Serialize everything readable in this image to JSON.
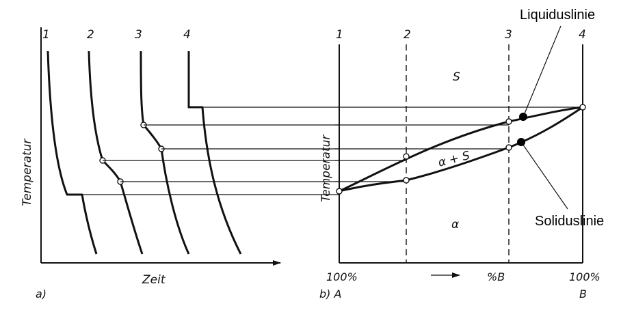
{
  "panel_a": {
    "curve_numbers": [
      "1",
      "2",
      "3",
      "4"
    ],
    "ylabel": "Temperatur",
    "xlabel": "Zeit",
    "panel_label": "a)"
  },
  "panel_b": {
    "line_numbers": [
      "1",
      "2",
      "3",
      "4"
    ],
    "ylabel": "Temperatur",
    "region_top": "S",
    "region_middle": "α + S",
    "region_bottom": "α",
    "x_left_label": "100%",
    "x_left_sub": "b) A",
    "x_mid_label": "%B",
    "x_right_label": "100%",
    "x_right_sub": "B",
    "callout_liquidus": "Liquiduslinie",
    "callout_solidus": "Soliduslinie"
  }
}
